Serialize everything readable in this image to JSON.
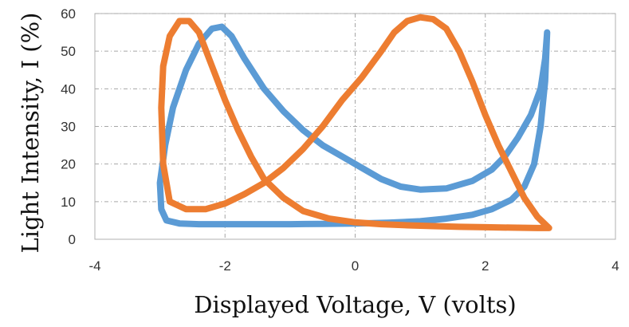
{
  "chart_data": {
    "type": "line",
    "title": "",
    "xlabel": "Displayed Voltage, V (volts)",
    "ylabel": "Light Intensity, I (%)",
    "xlim": [
      -4,
      4
    ],
    "ylim": [
      0,
      60
    ],
    "x_ticks": [
      -4,
      -2,
      0,
      2,
      4
    ],
    "y_ticks": [
      0,
      10,
      20,
      30,
      40,
      50,
      60
    ],
    "x_tick_labels": [
      "-4",
      "-2",
      "0",
      "2",
      "4"
    ],
    "y_tick_labels": [
      "0",
      "10",
      "20",
      "30",
      "40",
      "50",
      "60"
    ],
    "grid": true,
    "legend": "none",
    "series": [
      {
        "color": "#5B9BD5",
        "x": [
          2.95,
          2.92,
          2.85,
          2.7,
          2.5,
          2.3,
          2.1,
          1.8,
          1.4,
          1.0,
          0.7,
          0.4,
          0.1,
          -0.2,
          -0.5,
          -0.8,
          -1.1,
          -1.4,
          -1.7,
          -1.9,
          -2.05,
          -2.2,
          -2.4,
          -2.6,
          -2.8,
          -2.92,
          -3.0,
          -2.98,
          -2.9,
          -2.7,
          -2.4,
          -2.0,
          -1.5,
          -1.0,
          -0.5,
          0.0,
          0.5,
          1.0,
          1.4,
          1.8,
          2.1,
          2.4,
          2.6,
          2.75,
          2.85,
          2.92,
          2.95
        ],
        "y": [
          55,
          48,
          40,
          33,
          27,
          22,
          18.5,
          15.5,
          13.5,
          13.2,
          14,
          16,
          19,
          22,
          25,
          29,
          34,
          40,
          48,
          54,
          56.5,
          56,
          52,
          45,
          35,
          25,
          15,
          8,
          5,
          4.2,
          4.0,
          4.0,
          4.0,
          4.0,
          4.1,
          4.2,
          4.4,
          4.8,
          5.5,
          6.5,
          8,
          10.5,
          14,
          20,
          30,
          42,
          55
        ]
      },
      {
        "color": "#ED7D31",
        "x": [
          2.98,
          2.8,
          2.6,
          2.4,
          2.2,
          2.0,
          1.8,
          1.6,
          1.4,
          1.2,
          1.0,
          0.8,
          0.6,
          0.4,
          0.1,
          -0.2,
          -0.5,
          -0.8,
          -1.1,
          -1.4,
          -1.7,
          -2.0,
          -2.3,
          -2.6,
          -2.85,
          -2.95,
          -2.98,
          -2.95,
          -2.85,
          -2.7,
          -2.55,
          -2.4,
          -2.2,
          -2.0,
          -1.8,
          -1.6,
          -1.4,
          -1.1,
          -0.8,
          -0.4,
          0.0,
          0.4,
          0.8,
          1.2,
          1.6,
          2.0,
          2.4,
          2.8,
          2.98
        ],
        "y": [
          3.0,
          6,
          11,
          18,
          25,
          33,
          42,
          50,
          56,
          58.5,
          59,
          58,
          55,
          50,
          43,
          37,
          30,
          24,
          19,
          15,
          12,
          9.5,
          8.0,
          8.0,
          10,
          20,
          35,
          46,
          54,
          58,
          58,
          55,
          46,
          37,
          29,
          22,
          16,
          11,
          7.5,
          5.5,
          4.5,
          4.0,
          3.7,
          3.5,
          3.3,
          3.2,
          3.1,
          3.0,
          3.0
        ]
      }
    ]
  }
}
